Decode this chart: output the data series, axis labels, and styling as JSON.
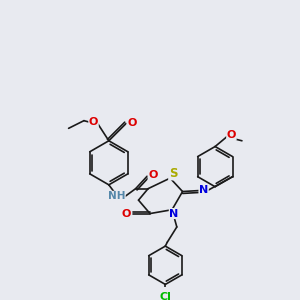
{
  "bg_color": "#e8eaf0",
  "bond_color": "#1a1a1a",
  "atom_colors": {
    "O": "#dd0000",
    "N": "#0000dd",
    "S": "#aaaa00",
    "Cl": "#00bb00",
    "NH": "#5588aa"
  },
  "font_size": 7.0,
  "line_width": 1.2
}
